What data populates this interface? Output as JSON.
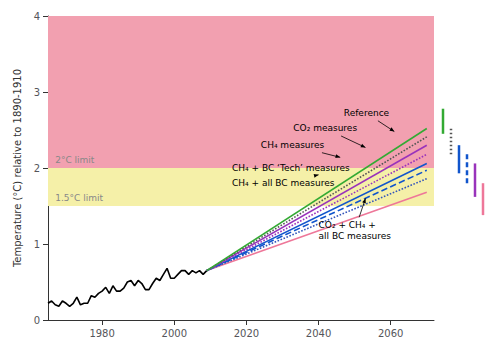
{
  "chart_data": {
    "type": "line",
    "ylabel": "Temperature (°C) relative to 1890-1910",
    "xlim": [
      1965,
      2072
    ],
    "ylim": [
      0,
      4
    ],
    "xticks": [
      1980,
      2000,
      2020,
      2040,
      2060
    ],
    "yticks": [
      0,
      1,
      2,
      3,
      4
    ],
    "grid": false,
    "bands": [
      {
        "from": 2.0,
        "to": 4.0,
        "color": "#F2A0B0"
      },
      {
        "from": 1.5,
        "to": 2.0,
        "color": "#F5F0A8"
      }
    ],
    "series": [
      {
        "color": "#000000",
        "line_style": "solid",
        "x": [
          1965,
          1966,
          1967,
          1968,
          1969,
          1970,
          1971,
          1972,
          1973,
          1974,
          1975,
          1976,
          1977,
          1978,
          1979,
          1980,
          1981,
          1982,
          1983,
          1984,
          1985,
          1986,
          1987,
          1988,
          1989,
          1990,
          1991,
          1992,
          1993,
          1994,
          1995,
          1996,
          1997,
          1998,
          1999,
          2000,
          2001,
          2002,
          2003,
          2004,
          2005,
          2006,
          2007,
          2008,
          2009
        ],
        "values": [
          0.22,
          0.25,
          0.2,
          0.18,
          0.25,
          0.22,
          0.18,
          0.22,
          0.3,
          0.2,
          0.22,
          0.22,
          0.32,
          0.3,
          0.35,
          0.38,
          0.43,
          0.35,
          0.45,
          0.38,
          0.38,
          0.42,
          0.5,
          0.52,
          0.45,
          0.52,
          0.48,
          0.4,
          0.4,
          0.48,
          0.55,
          0.52,
          0.6,
          0.68,
          0.55,
          0.55,
          0.6,
          0.65,
          0.65,
          0.6,
          0.65,
          0.62,
          0.65,
          0.6,
          0.65
        ]
      },
      {
        "color": "#EE7799",
        "line_style": "solid",
        "x": [
          2009,
          2070
        ],
        "values": [
          0.65,
          1.68
        ]
      },
      {
        "color": "#3355BB",
        "line_style": "dotted",
        "x": [
          2009,
          2070
        ],
        "values": [
          0.65,
          1.86
        ]
      },
      {
        "color": "#1155CC",
        "line_style": "dashed",
        "x": [
          2009,
          2070
        ],
        "values": [
          0.65,
          1.97
        ]
      },
      {
        "color": "#1155CC",
        "line_style": "solid",
        "x": [
          2009,
          2070
        ],
        "values": [
          0.65,
          2.06
        ]
      },
      {
        "color": "#9933BB",
        "line_style": "dotted",
        "x": [
          2009,
          2070
        ],
        "values": [
          0.65,
          2.18
        ]
      },
      {
        "color": "#9933BB",
        "line_style": "solid",
        "x": [
          2009,
          2070
        ],
        "values": [
          0.65,
          2.3
        ]
      },
      {
        "color": "#555555",
        "line_style": "dotted",
        "x": [
          2009,
          2070
        ],
        "values": [
          0.65,
          2.41
        ]
      },
      {
        "color": "#33AA33",
        "line_style": "solid",
        "x": [
          2009,
          2070
        ],
        "values": [
          0.65,
          2.52
        ]
      }
    ],
    "ranges": [
      {
        "color": "#33AA33",
        "line_style": "solid",
        "values": [
          2.45,
          2.78
        ]
      },
      {
        "color": "#555555",
        "line_style": "dotted",
        "values": [
          2.18,
          2.52
        ]
      },
      {
        "color": "#1155CC",
        "line_style": "solid",
        "values": [
          1.93,
          2.3
        ]
      },
      {
        "color": "#1155CC",
        "line_style": "dashed",
        "values": [
          1.8,
          2.2
        ]
      },
      {
        "color": "#9933BB",
        "line_style": "solid",
        "values": [
          1.62,
          2.06
        ]
      },
      {
        "color": "#EE7799",
        "line_style": "solid",
        "values": [
          1.38,
          1.8
        ]
      }
    ],
    "annotations": [
      {
        "text": "2°C limit",
        "xy": [
          1967,
          2.03
        ],
        "color": "#888888"
      },
      {
        "text": "1.5°C limit",
        "xy": [
          1967,
          1.53
        ],
        "color": "#888888"
      },
      {
        "text": "Reference",
        "xy": [
          2061,
          2.48
        ],
        "xytext": [
          2047,
          2.72
        ],
        "color": "#000000"
      },
      {
        "text": "CO₂ measures",
        "xy": [
          2053,
          2.27
        ],
        "xytext": [
          2033,
          2.52
        ],
        "color": "#000000"
      },
      {
        "text": "CH₄ measures",
        "xy": [
          2046,
          2.14
        ],
        "xytext": [
          2024,
          2.3
        ],
        "color": "#000000"
      },
      {
        "text": "CH₄ + BC ‘Tech’ measures",
        "xy": [
          2040,
          2.0
        ],
        "xytext": [
          2016,
          2.0
        ],
        "color": "#000000"
      },
      {
        "text": "CH₄ + all BC measures",
        "xy": [
          2040,
          1.91
        ],
        "xytext": [
          2016,
          1.8
        ],
        "color": "#000000"
      },
      {
        "text": "CO₂ + CH₄ +\nall BC measures",
        "xy": [
          2053,
          1.6
        ],
        "xytext": [
          2040,
          1.18
        ],
        "color": "#000000"
      }
    ]
  }
}
